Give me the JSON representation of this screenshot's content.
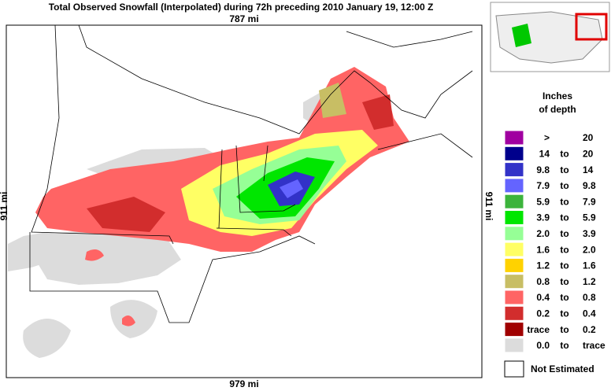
{
  "header": {
    "title": "Total Observed Snowfall (Interpolated) during 72h preceding 2010 January 19, 12:00 Z"
  },
  "map": {
    "top_scale": "787 mi",
    "bottom_scale": "979 mi",
    "left_scale": "911 mi",
    "right_scale": "911 mi"
  },
  "legend": {
    "title_line1": "Inches",
    "title_line2": "of depth",
    "rows": [
      {
        "color": "#a000a0",
        "from": ">",
        "to": "20"
      },
      {
        "color": "#00008c",
        "from": "14",
        "word": "to",
        "to": "20"
      },
      {
        "color": "#3232c8",
        "from": "9.8",
        "word": "to",
        "to": "14"
      },
      {
        "color": "#6464ff",
        "from": "7.9",
        "word": "to",
        "to": "9.8"
      },
      {
        "color": "#3cb43c",
        "from": "5.9",
        "word": "to",
        "to": "7.9"
      },
      {
        "color": "#00e600",
        "from": "3.9",
        "word": "to",
        "to": "5.9"
      },
      {
        "color": "#96ff96",
        "from": "2.0",
        "word": "to",
        "to": "3.9"
      },
      {
        "color": "#ffff64",
        "from": "1.6",
        "word": "to",
        "to": "2.0"
      },
      {
        "color": "#ffd200",
        "from": "1.2",
        "word": "to",
        "to": "1.6"
      },
      {
        "color": "#c8be64",
        "from": "0.8",
        "word": "to",
        "to": "1.2"
      },
      {
        "color": "#ff6464",
        "from": "0.4",
        "word": "to",
        "to": "0.8"
      },
      {
        "color": "#d22d2d",
        "from": "0.2",
        "word": "to",
        "to": "0.4"
      },
      {
        "color": "#a00000",
        "from": "trace",
        "word": "to",
        "to": "0.2"
      },
      {
        "color": "#dcdcdc",
        "from": "0.0",
        "word": "to",
        "to": "trace"
      }
    ],
    "not_estimated": {
      "color": "#ffffff",
      "label": "Not Estimated"
    }
  }
}
